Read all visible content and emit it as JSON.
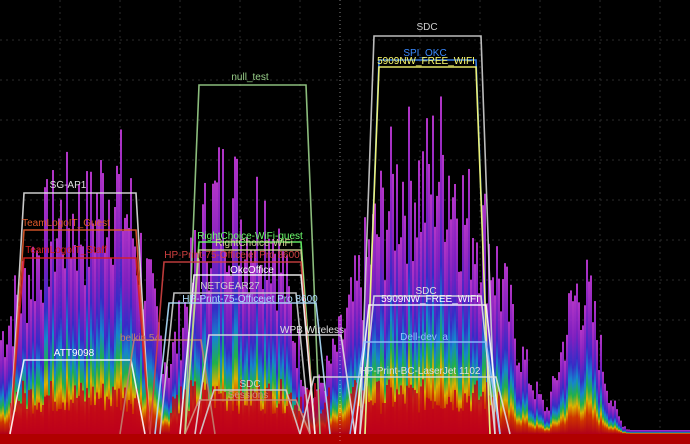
{
  "view": {
    "type": "wifi-spectrum-density",
    "background": "#000000",
    "grid_color": "#2c2c2c",
    "palette": [
      "#c0001b",
      "#e03a00",
      "#f0c000",
      "#22c050",
      "#1890e0",
      "#3a30d8",
      "#8a22d0",
      "#c23ad8"
    ]
  },
  "networks": [
    {
      "ssid": "SG-AP1",
      "color": "#e0e0e0"
    },
    {
      "ssid": "TeamLogoIT_Guest",
      "color": "#e05a2a"
    },
    {
      "ssid": "TeamLogoIT_Staff",
      "color": "#d82020"
    },
    {
      "ssid": "ATT9098",
      "color": "#ffffff"
    },
    {
      "ssid": "belkin.54",
      "color": "#c08070"
    },
    {
      "ssid": "null_test",
      "color": "#9ad08a"
    },
    {
      "ssid": "RightChoice-WiFi-guest",
      "color": "#6cff6c"
    },
    {
      "ssid": "RightChoice-WiFi",
      "color": "#d0d090"
    },
    {
      "ssid": "HP-Print-75-Officejet Pro 8600",
      "color": "#d04040"
    },
    {
      "ssid": "OkcOffice",
      "color": "#ffffff"
    },
    {
      "ssid": "NETGEAR27",
      "color": "#d0d0d0"
    },
    {
      "ssid": "HP-Print-75-Officejet Pro 8600",
      "color": "#b0e0ff"
    },
    {
      "ssid": "WPB Wireless",
      "color": "#e0e0e0"
    },
    {
      "ssid": "SDC",
      "color": "#d0d0d0"
    },
    {
      "ssid": "Sessions",
      "color": "#d09080"
    },
    {
      "ssid": "SDC",
      "color": "#d0d0d0"
    },
    {
      "ssid": "SPI_OKC",
      "color": "#3a8aff"
    },
    {
      "ssid": "5909NW_FREE_WIFI",
      "color": "#ffff70"
    },
    {
      "ssid": "5909NW_FREE_WIFI",
      "color": "#ffffff"
    },
    {
      "ssid": "SDC",
      "color": "#e0e0e0"
    },
    {
      "ssid": "Dell-dev_a",
      "color": "#90c0ff"
    },
    {
      "ssid": "HP-Print-BC-LaserJet 1102",
      "color": "#e0e0e0"
    }
  ]
}
